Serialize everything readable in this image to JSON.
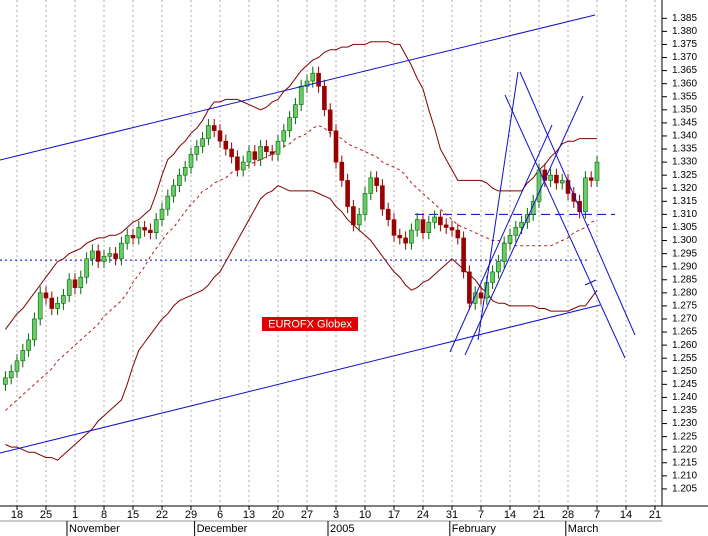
{
  "chart_data": {
    "type": "candlestick",
    "categories": [
      null,
      null,
      "18",
      null,
      null,
      null,
      null,
      "25",
      null,
      null,
      null,
      null,
      "1",
      null,
      null,
      null,
      null,
      "8",
      null,
      null,
      null,
      null,
      "15",
      null,
      null,
      null,
      null,
      "22",
      null,
      null,
      null,
      null,
      "29",
      null,
      null,
      null,
      null,
      "6",
      null,
      null,
      null,
      null,
      "13",
      null,
      null,
      null,
      null,
      "20",
      null,
      null,
      null,
      null,
      "27",
      null,
      null,
      null,
      null,
      "3",
      null,
      null,
      null,
      null,
      "10",
      null,
      null,
      null,
      null,
      "17",
      null,
      null,
      null,
      null,
      "24",
      null,
      null,
      null,
      null,
      "31",
      null,
      null,
      null,
      null,
      "7",
      null,
      null,
      null,
      null,
      "14",
      null,
      null,
      null,
      null,
      "21",
      null,
      null,
      null,
      null,
      "28",
      null,
      null,
      null,
      null,
      "7",
      null,
      null,
      null,
      null,
      "14",
      null,
      null,
      null,
      null,
      "21",
      null
    ],
    "months": [
      null,
      null,
      null,
      null,
      null,
      null,
      null,
      null,
      null,
      null,
      null,
      null,
      "November",
      null,
      null,
      null,
      null,
      null,
      null,
      null,
      null,
      null,
      null,
      null,
      null,
      null,
      null,
      null,
      null,
      null,
      null,
      null,
      null,
      null,
      "December",
      null,
      null,
      null,
      null,
      null,
      null,
      null,
      null,
      null,
      null,
      null,
      null,
      null,
      null,
      null,
      null,
      null,
      null,
      null,
      null,
      null,
      null,
      "2005",
      null,
      null,
      null,
      null,
      null,
      null,
      null,
      null,
      null,
      null,
      null,
      null,
      null,
      null,
      null,
      null,
      null,
      null,
      null,
      null,
      "February",
      null,
      null,
      null,
      null,
      null,
      null,
      null,
      null,
      null,
      null,
      null,
      null,
      null,
      null,
      null,
      null,
      null,
      null,
      null,
      "March",
      null,
      null,
      null,
      null,
      null,
      null,
      null,
      null,
      null,
      null,
      null,
      null,
      null,
      null,
      null
    ],
    "open": [
      1.245,
      1.2475,
      1.25,
      1.254,
      1.258,
      1.262,
      1.27,
      1.28,
      1.278,
      1.274,
      1.276,
      1.279,
      1.285,
      1.282,
      1.286,
      1.293,
      1.296,
      1.292,
      1.294,
      1.295,
      1.293,
      1.299,
      1.302,
      1.301,
      1.305,
      1.304,
      1.303,
      1.308,
      1.312,
      1.317,
      1.321,
      1.325,
      1.328,
      1.333,
      1.336,
      1.339,
      1.344,
      1.342,
      1.338,
      1.335,
      1.332,
      1.327,
      1.33,
      1.334,
      1.331,
      1.336,
      1.334,
      1.333,
      1.338,
      1.342,
      1.347,
      1.352,
      1.359,
      1.361,
      1.364,
      1.359,
      1.35,
      1.342,
      1.33,
      1.323,
      1.313,
      1.306,
      1.31,
      1.318,
      1.324,
      1.321,
      1.312,
      1.308,
      1.302,
      1.301,
      1.299,
      1.304,
      1.308,
      1.303,
      1.307,
      1.309,
      1.306,
      1.305,
      1.304,
      1.301,
      1.288,
      1.276,
      1.28,
      1.278,
      1.284,
      1.288,
      1.292,
      1.299,
      1.302,
      1.305,
      1.307,
      1.31,
      1.315,
      1.327,
      1.323,
      1.325,
      1.322,
      1.323,
      1.318,
      1.315,
      1.311,
      1.324,
      1.323,
      null,
      null,
      null,
      null,
      null,
      null,
      null,
      null,
      null,
      null,
      null
    ],
    "high": [
      1.25,
      1.2525,
      1.2565,
      1.2605,
      1.2645,
      1.2725,
      1.2825,
      1.2825,
      1.2805,
      1.2785,
      1.2815,
      1.2875,
      1.2875,
      1.2885,
      1.2955,
      1.2985,
      1.2985,
      1.2965,
      1.2975,
      1.2975,
      1.3015,
      1.3045,
      1.3045,
      1.3075,
      1.3075,
      1.3065,
      1.3105,
      1.3145,
      1.3195,
      1.3235,
      1.3275,
      1.3305,
      1.3355,
      1.3385,
      1.3415,
      1.3465,
      1.3465,
      1.3445,
      1.3405,
      1.3375,
      1.3345,
      1.3325,
      1.3365,
      1.3365,
      1.3385,
      1.3385,
      1.3365,
      1.3405,
      1.3445,
      1.3495,
      1.3545,
      1.3615,
      1.3635,
      1.3665,
      1.3665,
      1.3615,
      1.3525,
      1.3445,
      1.3325,
      1.3255,
      1.3155,
      1.3125,
      1.3205,
      1.3265,
      1.3265,
      1.3235,
      1.3145,
      1.3105,
      1.3045,
      1.3035,
      1.3065,
      1.3105,
      1.3105,
      1.3095,
      1.3115,
      1.3115,
      1.3085,
      1.3075,
      1.3065,
      1.3035,
      1.2905,
      1.2825,
      1.2825,
      1.2865,
      1.2905,
      1.2945,
      1.3015,
      1.3045,
      1.3075,
      1.3095,
      1.3125,
      1.3175,
      1.3295,
      1.3295,
      1.3275,
      1.3275,
      1.3255,
      1.3255,
      1.3205,
      1.3175,
      1.3265,
      1.3265,
      1.3325,
      null,
      null,
      null,
      null,
      null,
      null,
      null,
      null,
      null,
      null,
      null
    ],
    "low": [
      1.2425,
      1.245,
      1.2475,
      1.2515,
      1.2555,
      1.2595,
      1.2675,
      1.2755,
      1.2715,
      1.2715,
      1.2735,
      1.2765,
      1.2795,
      1.2795,
      1.2835,
      1.2905,
      1.2895,
      1.2895,
      1.2915,
      1.2905,
      1.2905,
      1.2965,
      1.2985,
      1.2985,
      1.3015,
      1.3005,
      1.3005,
      1.3055,
      1.3095,
      1.3145,
      1.3185,
      1.3225,
      1.3255,
      1.3305,
      1.3335,
      1.3365,
      1.3395,
      1.3355,
      1.3325,
      1.3295,
      1.3245,
      1.3245,
      1.3275,
      1.3285,
      1.3285,
      1.3315,
      1.3305,
      1.3305,
      1.3355,
      1.3395,
      1.3445,
      1.3495,
      1.3565,
      1.3585,
      1.3565,
      1.3475,
      1.3395,
      1.3275,
      1.3205,
      1.3105,
      1.3035,
      1.3035,
      1.3075,
      1.3155,
      1.3185,
      1.3095,
      1.3055,
      1.2995,
      1.2985,
      1.2965,
      1.2965,
      1.3015,
      1.3005,
      1.3005,
      1.3045,
      1.3035,
      1.3025,
      1.3015,
      1.2985,
      1.2855,
      1.2735,
      1.2735,
      1.2755,
      1.2755,
      1.2815,
      1.2855,
      1.2895,
      1.2965,
      1.2995,
      1.3025,
      1.3045,
      1.3075,
      1.3125,
      1.3205,
      1.3205,
      1.3195,
      1.3195,
      1.3155,
      1.3125,
      1.3085,
      1.3085,
      1.3205,
      1.3205,
      null,
      null,
      null,
      null,
      null,
      null,
      null,
      null,
      null,
      null,
      null
    ],
    "close": [
      1.2475,
      1.25,
      1.254,
      1.258,
      1.262,
      1.27,
      1.28,
      1.278,
      1.274,
      1.276,
      1.279,
      1.285,
      1.282,
      1.286,
      1.293,
      1.296,
      1.292,
      1.294,
      1.295,
      1.293,
      1.299,
      1.302,
      1.301,
      1.305,
      1.304,
      1.303,
      1.308,
      1.312,
      1.317,
      1.321,
      1.325,
      1.328,
      1.333,
      1.336,
      1.339,
      1.344,
      1.342,
      1.338,
      1.335,
      1.332,
      1.327,
      1.33,
      1.334,
      1.331,
      1.336,
      1.334,
      1.333,
      1.338,
      1.342,
      1.347,
      1.352,
      1.359,
      1.361,
      1.364,
      1.359,
      1.35,
      1.342,
      1.33,
      1.323,
      1.313,
      1.306,
      1.31,
      1.318,
      1.324,
      1.321,
      1.312,
      1.308,
      1.302,
      1.301,
      1.299,
      1.304,
      1.308,
      1.303,
      1.307,
      1.309,
      1.306,
      1.305,
      1.304,
      1.301,
      1.288,
      1.276,
      1.28,
      1.278,
      1.284,
      1.288,
      1.292,
      1.299,
      1.302,
      1.305,
      1.307,
      1.31,
      1.315,
      1.327,
      1.323,
      1.325,
      1.322,
      1.323,
      1.318,
      1.315,
      1.311,
      1.324,
      1.323,
      1.33,
      null,
      null,
      null,
      null,
      null,
      null,
      null,
      null,
      null,
      null,
      null
    ],
    "up_color": "#66cc66",
    "up_edge": "#006600",
    "down_color": "#990000",
    "lines": [
      {
        "color": "#800000",
        "dashed": false,
        "values": [
          1.266,
          1.269,
          1.272,
          1.274,
          1.277,
          1.28,
          1.283,
          1.286,
          1.289,
          1.292,
          1.293,
          1.295,
          1.296,
          1.297,
          1.299,
          1.3,
          1.301,
          1.301,
          1.302,
          1.302,
          1.303,
          1.305,
          1.307,
          1.308,
          1.31,
          1.312,
          1.318,
          1.325,
          1.331,
          1.333,
          1.336,
          1.338,
          1.341,
          1.343,
          1.346,
          1.35,
          1.353,
          1.353,
          1.354,
          1.354,
          1.354,
          1.353,
          1.352,
          1.351,
          1.35,
          1.351,
          1.353,
          1.354,
          1.357,
          1.359,
          1.362,
          1.365,
          1.367,
          1.369,
          1.37,
          1.372,
          1.373,
          1.373,
          1.374,
          1.374,
          1.375,
          1.375,
          1.375,
          1.376,
          1.376,
          1.376,
          1.376,
          1.375,
          1.375,
          1.371,
          1.367,
          1.362,
          1.358,
          1.35,
          1.343,
          1.335,
          1.331,
          1.327,
          1.323,
          1.323,
          1.323,
          1.323,
          1.323,
          1.322,
          1.32,
          1.319,
          1.319,
          1.319,
          1.319,
          1.319,
          1.322,
          1.324,
          1.327,
          1.329,
          1.332,
          1.334,
          1.337,
          1.338,
          1.338,
          1.339,
          1.339,
          1.339,
          1.339,
          null,
          null,
          null,
          null,
          null,
          null,
          null,
          null,
          null,
          null,
          null
        ]
      },
      {
        "color": "#800000",
        "dashed": false,
        "values": [
          1.222,
          1.221,
          1.221,
          1.22,
          1.219,
          1.219,
          1.218,
          1.217,
          1.217,
          1.216,
          1.218,
          1.22,
          1.222,
          1.224,
          1.226,
          1.228,
          1.231,
          1.233,
          1.235,
          1.237,
          1.239,
          1.245,
          1.252,
          1.258,
          1.261,
          1.264,
          1.267,
          1.27,
          1.272,
          1.275,
          1.277,
          1.278,
          1.279,
          1.28,
          1.281,
          1.283,
          1.286,
          1.288,
          1.292,
          1.296,
          1.3,
          1.304,
          1.308,
          1.312,
          1.316,
          1.318,
          1.319,
          1.321,
          1.32,
          1.319,
          1.319,
          1.319,
          1.319,
          1.319,
          1.318,
          1.317,
          1.316,
          1.313,
          1.311,
          1.308,
          1.306,
          1.304,
          1.302,
          1.3,
          1.297,
          1.294,
          1.291,
          1.288,
          1.286,
          1.283,
          1.281,
          1.282,
          1.284,
          1.285,
          1.287,
          1.289,
          1.291,
          1.293,
          1.291,
          1.289,
          1.287,
          1.285,
          1.282,
          1.28,
          1.277,
          1.276,
          1.276,
          1.275,
          1.275,
          1.275,
          1.275,
          1.275,
          1.274,
          1.274,
          1.273,
          1.273,
          1.273,
          1.273,
          1.274,
          1.275,
          1.275,
          1.278,
          1.281,
          null,
          null,
          null,
          null,
          null,
          null,
          null,
          null,
          null,
          null,
          null
        ]
      },
      {
        "color": "#b02020",
        "dashed": true,
        "values": [
          1.235,
          1.237,
          1.239,
          1.241,
          1.243,
          1.245,
          1.247,
          1.249,
          1.251,
          1.254,
          1.256,
          1.258,
          1.26,
          1.262,
          1.264,
          1.266,
          1.268,
          1.271,
          1.273,
          1.275,
          1.277,
          1.28,
          1.284,
          1.287,
          1.29,
          1.294,
          1.297,
          1.3,
          1.303,
          1.305,
          1.308,
          1.311,
          1.314,
          1.316,
          1.319,
          1.32,
          1.322,
          1.323,
          1.324,
          1.326,
          1.327,
          1.328,
          1.329,
          1.33,
          1.331,
          1.332,
          1.333,
          1.335,
          1.336,
          1.337,
          1.339,
          1.34,
          1.341,
          1.343,
          1.344,
          1.343,
          1.341,
          1.34,
          1.339,
          1.337,
          1.336,
          1.335,
          1.334,
          1.333,
          1.332,
          1.33,
          1.329,
          1.328,
          1.327,
          1.325,
          1.322,
          1.32,
          1.318,
          1.316,
          1.314,
          1.312,
          1.31,
          1.308,
          1.306,
          1.305,
          1.304,
          1.303,
          1.302,
          1.301,
          1.3,
          1.3,
          1.299,
          1.299,
          1.298,
          1.298,
          1.298,
          1.298,
          1.298,
          1.298,
          1.298,
          1.299,
          1.3,
          1.301,
          1.303,
          1.304,
          1.305,
          1.307,
          1.308,
          null,
          null,
          null,
          null,
          null,
          null,
          null,
          null,
          null,
          null,
          null
        ]
      }
    ],
    "hlines": [
      {
        "value": 1.2925,
        "color": "#0000cc",
        "dash": "2,3"
      },
      {
        "value": 1.31,
        "color": "#0000cc",
        "dash": "9,5"
      }
    ],
    "annotation": "EUROFX Globex",
    "ylim": [
      1.2,
      1.392
    ],
    "yticks": [
      1.205,
      {
        "value": 1.21,
        "label": "1.210"
      },
      1.215,
      {
        "value": 1.22,
        "label": "1.220"
      },
      1.225,
      {
        "value": 1.23,
        "label": "1.230"
      },
      1.235,
      {
        "value": 1.24,
        "label": "1.240"
      },
      1.245,
      {
        "value": 1.25,
        "label": "1.250"
      },
      1.255,
      {
        "value": 1.26,
        "label": "1.260"
      },
      1.265,
      {
        "value": 1.27,
        "label": "1.270"
      },
      1.275,
      {
        "value": 1.28,
        "label": "1.280"
      },
      1.285,
      {
        "value": 1.29,
        "label": "1.290"
      },
      1.295,
      {
        "value": 1.3,
        "label": "1.300"
      },
      1.305,
      {
        "value": 1.31,
        "label": "1.310"
      },
      1.315,
      {
        "value": 1.32,
        "label": "1.320"
      },
      1.325,
      {
        "value": 1.33,
        "label": "1.330"
      },
      1.335,
      {
        "value": 1.34,
        "label": "1.340"
      },
      1.345,
      {
        "value": 1.35,
        "label": "1.350"
      },
      1.355,
      {
        "value": 1.36,
        "label": "1.360"
      },
      1.365,
      {
        "value": 1.37,
        "label": "1.370"
      },
      1.375,
      {
        "value": 1.38,
        "label": "1.380"
      },
      1.385
    ],
    "grid": true
  }
}
